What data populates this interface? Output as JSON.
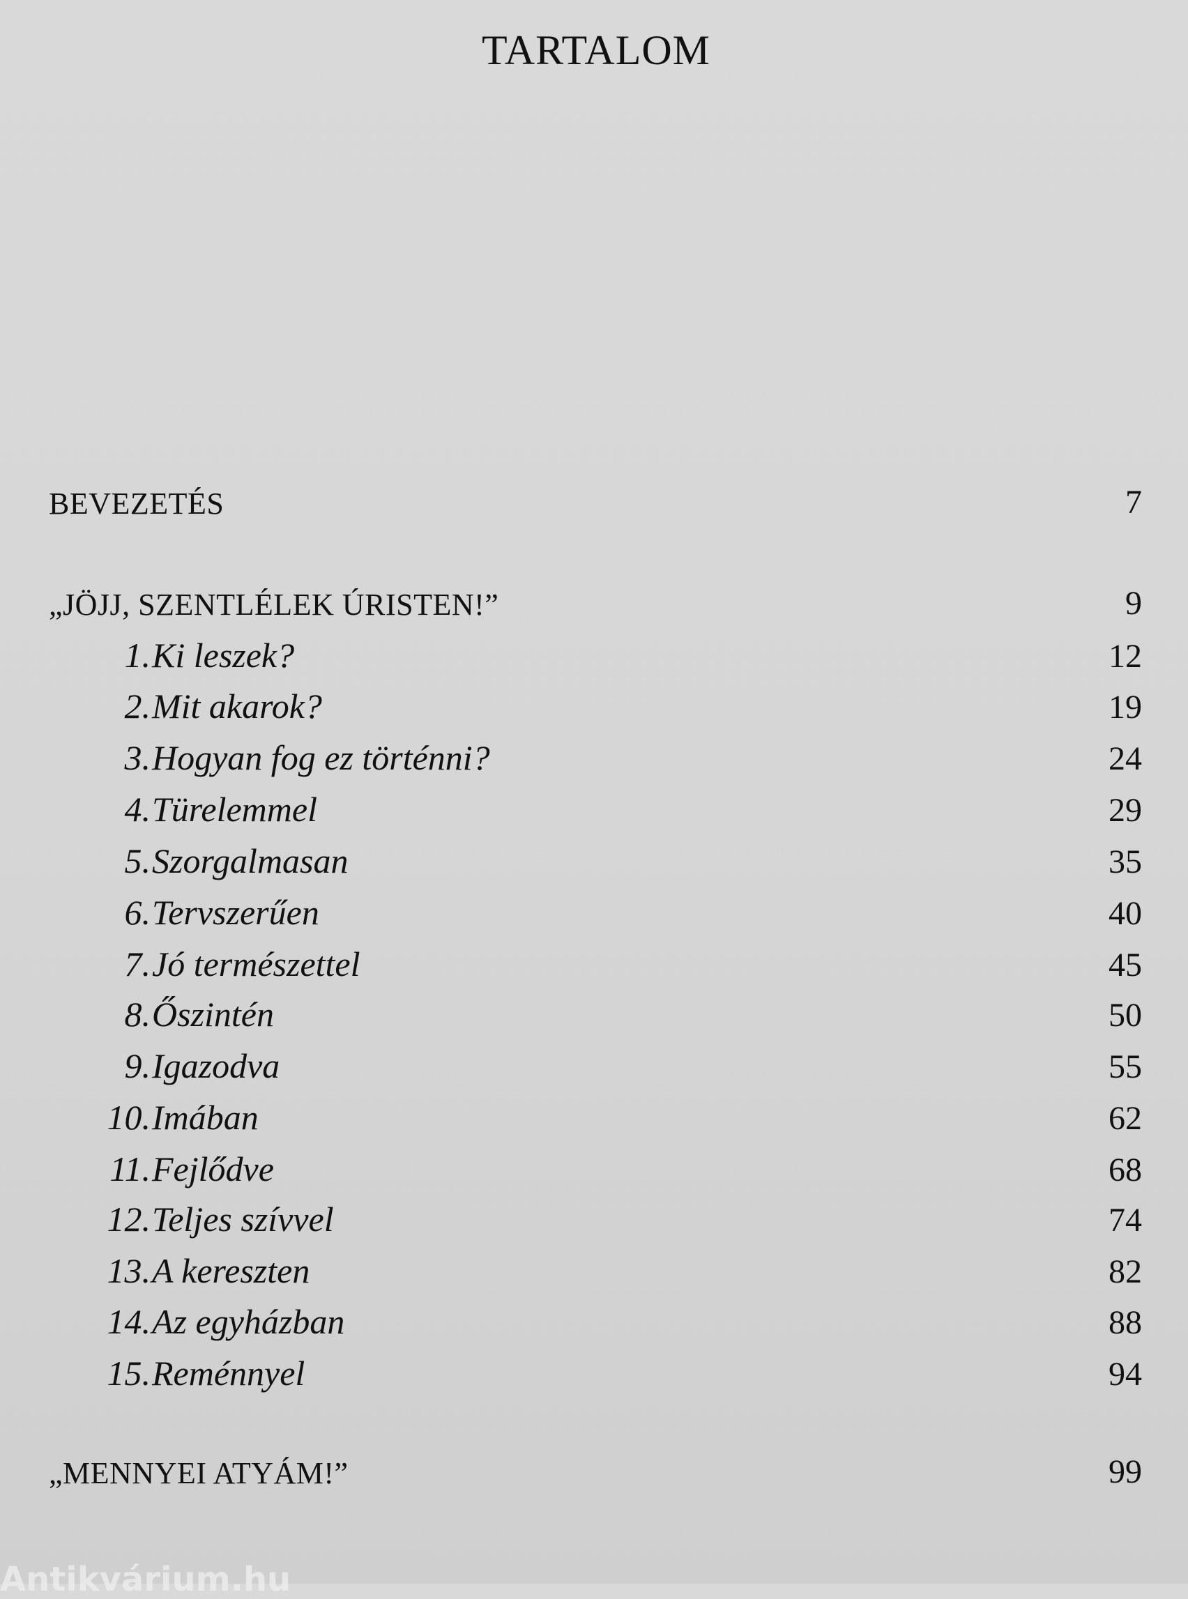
{
  "title": "TARTALOM",
  "sections": [
    {
      "label": "BEVEZETÉS",
      "page": "7"
    },
    {
      "label": "„JÖJJ, SZENTLÉLEK ÚRISTEN!”",
      "page": "9"
    }
  ],
  "chapters": [
    {
      "num": "1.",
      "label": "Ki leszek?",
      "page": "12"
    },
    {
      "num": "2.",
      "label": "Mit akarok?",
      "page": "19"
    },
    {
      "num": "3.",
      "label": "Hogyan fog ez történni?",
      "page": "24"
    },
    {
      "num": "4.",
      "label": "Türelemmel",
      "page": "29"
    },
    {
      "num": "5.",
      "label": "Szorgalmasan",
      "page": "35"
    },
    {
      "num": "6.",
      "label": "Tervszerűen",
      "page": "40"
    },
    {
      "num": "7.",
      "label": "Jó természettel",
      "page": "45"
    },
    {
      "num": "8.",
      "label": "Őszintén",
      "page": "50"
    },
    {
      "num": "9.",
      "label": "Igazodva",
      "page": "55"
    },
    {
      "num": "10.",
      "label": "Imában",
      "page": "62"
    },
    {
      "num": "11.",
      "label": "Fejlődve",
      "page": "68"
    },
    {
      "num": "12.",
      "label": "Teljes szívvel",
      "page": "74"
    },
    {
      "num": "13.",
      "label": "A kereszten",
      "page": "82"
    },
    {
      "num": "14.",
      "label": "Az egyházban",
      "page": "88"
    },
    {
      "num": "15.",
      "label": "Reménnyel",
      "page": "94"
    }
  ],
  "closing": {
    "label": "„MENNYEI ATYÁM!”",
    "page": "99"
  },
  "watermark": "Antikvárium.hu"
}
